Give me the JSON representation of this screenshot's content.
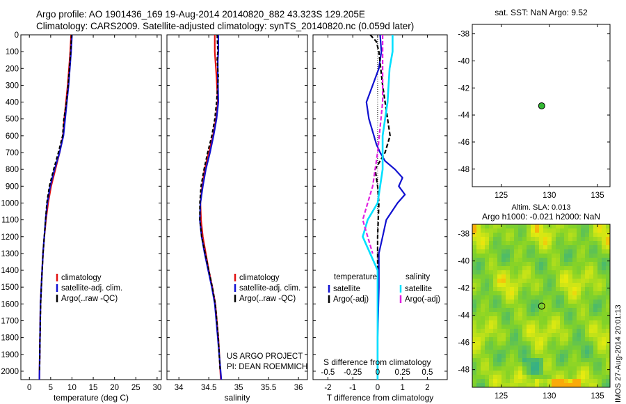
{
  "title": {
    "line1": "Argo profile: AO 1901436_169 19-Aug-2014 20140820_882 43.323S 129.205E",
    "line2": "Climatology: CARS2009. Satellite-adjusted climatology: synTS_20140820.nc (0.059d later)"
  },
  "credit": {
    "line1": "US ARGO PROJECT",
    "line2": "PI: DEAN ROEMMICH"
  },
  "stamp": "IMOS 27-Aug-2014 20:01:13",
  "colors": {
    "climatology": "#e01010",
    "satellite": "#1010d0",
    "argo": "#000000",
    "satellite_s": "#00e0ff",
    "argo_s": "#e020e0",
    "marker": "#33b833"
  },
  "chart_data": [
    {
      "type": "line",
      "panel": "temperature",
      "xlabel": "temperature (deg C)",
      "ylabel": "",
      "xlim": [
        -2,
        31
      ],
      "ylim": [
        2050,
        0
      ],
      "xticks": [
        0,
        5,
        10,
        15,
        20,
        25,
        30
      ],
      "yticks": [
        0,
        100,
        200,
        300,
        400,
        500,
        600,
        700,
        800,
        900,
        1000,
        1100,
        1200,
        1300,
        1400,
        1500,
        1600,
        1700,
        1800,
        1900,
        2000
      ],
      "legend": [
        "climatology",
        "satellite-adj. clim.",
        "Argo(..raw -QC)"
      ],
      "series": [
        {
          "name": "climatology",
          "x": [
            9.8,
            9.6,
            9.3,
            9.0,
            8.6,
            8.2,
            7.9,
            7.1,
            6.1,
            5.1,
            4.4,
            3.9,
            3.5,
            3.2,
            3.0,
            2.8,
            2.6,
            2.5,
            2.35
          ],
          "y": [
            0,
            100,
            200,
            300,
            400,
            500,
            600,
            700,
            800,
            900,
            1000,
            1100,
            1200,
            1300,
            1400,
            1500,
            1600,
            1800,
            2050
          ]
        },
        {
          "name": "satellite-adj. clim.",
          "x": [
            10.0,
            9.8,
            9.5,
            9.2,
            8.8,
            8.4,
            8.0,
            7.1,
            5.9,
            4.9,
            4.2,
            3.8,
            3.5,
            3.2,
            3.0,
            2.8,
            2.6,
            2.5,
            2.35
          ],
          "y": [
            0,
            100,
            200,
            300,
            400,
            500,
            600,
            700,
            800,
            900,
            1000,
            1100,
            1200,
            1300,
            1400,
            1500,
            1600,
            1800,
            2050
          ]
        },
        {
          "name": "Argo(..raw -QC)",
          "x": [
            9.9,
            9.7,
            9.4,
            9.1,
            8.7,
            8.1,
            7.8,
            6.8,
            5.7,
            4.7,
            4.1,
            3.8,
            3.5,
            3.2,
            3.0,
            2.8,
            2.65,
            2.5,
            2.4
          ],
          "y": [
            0,
            100,
            200,
            300,
            400,
            500,
            600,
            700,
            800,
            900,
            1000,
            1100,
            1200,
            1300,
            1400,
            1500,
            1600,
            1800,
            2000
          ]
        }
      ]
    },
    {
      "type": "line",
      "panel": "salinity",
      "xlabel": "salinity",
      "ylabel": "",
      "xlim": [
        33.8,
        36.15
      ],
      "ylim": [
        2050,
        0
      ],
      "xticks": [
        34,
        34.5,
        35,
        35.5,
        36
      ],
      "xticklabels": [
        "34",
        "34.5",
        "35",
        "35.5",
        "36"
      ],
      "legend": [
        "climatology",
        "satellite-adj. clim.",
        "Argo(..raw -QC)"
      ],
      "series": [
        {
          "name": "climatology",
          "x": [
            34.6,
            34.6,
            34.61,
            34.63,
            34.65,
            34.62,
            34.57,
            34.5,
            34.43,
            34.39,
            34.36,
            34.37,
            34.4,
            34.45,
            34.5,
            34.56,
            34.61,
            34.66,
            34.7
          ],
          "y": [
            0,
            100,
            150,
            250,
            400,
            500,
            600,
            700,
            800,
            900,
            1000,
            1100,
            1200,
            1300,
            1400,
            1500,
            1600,
            1800,
            2050
          ]
        },
        {
          "name": "satellite-adj. clim.",
          "x": [
            34.66,
            34.66,
            34.65,
            34.65,
            34.66,
            34.63,
            34.58,
            34.52,
            34.45,
            34.4,
            34.36,
            34.35,
            34.38,
            34.43,
            34.49,
            34.55,
            34.6,
            34.65,
            34.71
          ],
          "y": [
            0,
            100,
            150,
            250,
            400,
            500,
            600,
            700,
            800,
            900,
            1000,
            1100,
            1200,
            1300,
            1400,
            1500,
            1600,
            1800,
            2050
          ]
        },
        {
          "name": "Argo(..raw -QC)",
          "x": [
            34.64,
            34.65,
            34.64,
            34.66,
            34.63,
            34.6,
            34.55,
            34.48,
            34.42,
            34.37,
            34.35,
            34.35,
            34.38,
            34.44,
            34.5,
            34.56,
            34.61,
            34.66,
            34.69
          ],
          "y": [
            0,
            100,
            150,
            250,
            400,
            500,
            600,
            700,
            800,
            900,
            1000,
            1100,
            1200,
            1300,
            1400,
            1500,
            1600,
            1800,
            2000
          ]
        }
      ]
    },
    {
      "type": "line",
      "panel": "difference",
      "xlabel": "T difference from climatology",
      "xlabel2": "S difference from climatology",
      "ylabel": "",
      "xlim": [
        -2.6,
        2.8
      ],
      "ylim": [
        2050,
        0
      ],
      "xticks": [
        -2,
        -1,
        0,
        1,
        2
      ],
      "s_ticks": [
        -0.5,
        -0.25,
        0,
        0.25,
        0.5
      ],
      "s_ticklabels": [
        "-0.5",
        "-0.25",
        "0",
        "0.25",
        "0.5"
      ],
      "s_scale": 4,
      "legend": {
        "temperature_heading": "temperature",
        "salinity_heading": "salinity",
        "items": [
          "satellite",
          "Argo(-adj)",
          "satellite",
          "Argo(-adj)"
        ]
      },
      "series": [
        {
          "name": "satellite",
          "quantity": "temperature",
          "x": [
            0.1,
            0.15,
            0.05,
            -0.2,
            -0.45,
            -0.35,
            -0.25,
            -0.15,
            -0.05,
            0.1,
            0.3,
            0.7,
            1.0,
            0.85,
            1.1,
            0.8,
            0.35,
            0.2,
            0.05,
            0.05,
            0.0,
            0.0
          ],
          "y": [
            0,
            100,
            200,
            300,
            400,
            500,
            550,
            600,
            650,
            700,
            750,
            800,
            850,
            900,
            950,
            1000,
            1100,
            1200,
            1300,
            1500,
            1800,
            2050
          ]
        },
        {
          "name": "Argo(-adj)",
          "quantity": "temperature",
          "x": [
            -0.3,
            -0.05,
            0.05,
            0.2,
            0.4,
            0.5,
            0.3,
            -0.1,
            0.0,
            0.05,
            0.0,
            0.0
          ],
          "y": [
            0,
            40,
            100,
            300,
            500,
            600,
            700,
            800,
            900,
            1000,
            1200,
            1400
          ]
        },
        {
          "name": "satellite",
          "quantity": "salinity",
          "x": [
            0.15,
            0.15,
            0.12,
            0.1,
            0.05,
            0.05,
            0.0,
            -0.1,
            -0.15,
            0.0,
            0.0,
            0.0
          ],
          "y": [
            0,
            100,
            200,
            400,
            600,
            800,
            1000,
            1100,
            1200,
            1400,
            1800,
            2050
          ]
        },
        {
          "name": "Argo(-adj)",
          "quantity": "salinity",
          "x": [
            0.05,
            0.05,
            0.0,
            -0.05,
            -0.1,
            -0.15,
            -0.1,
            -0.05
          ],
          "y": [
            0,
            400,
            700,
            900,
            1000,
            1100,
            1200,
            1300
          ]
        }
      ]
    },
    {
      "type": "scatter",
      "panel": "sst-map",
      "title": "sat. SST: NaN Argo: 9.52",
      "xlim": [
        122,
        136.3
      ],
      "ylim": [
        -49.3,
        -37.3
      ],
      "xticks": [
        125,
        130,
        135
      ],
      "yticks": [
        -38,
        -40,
        -42,
        -44,
        -46,
        -48
      ],
      "points": [
        {
          "lon": 129.205,
          "lat": -43.323
        }
      ]
    },
    {
      "type": "heatmap",
      "panel": "sla-map",
      "title": "Altim. SLA: 0.013",
      "subtitle": "Argo h1000: -0.021 h2000: NaN",
      "xlim": [
        122,
        136.3
      ],
      "ylim": [
        -49.3,
        -37.3
      ],
      "xticks": [
        125,
        130,
        135
      ],
      "yticks": [
        -38,
        -40,
        -42,
        -44,
        -46,
        -48
      ],
      "points": [
        {
          "lon": 129.205,
          "lat": -43.323
        }
      ]
    }
  ]
}
